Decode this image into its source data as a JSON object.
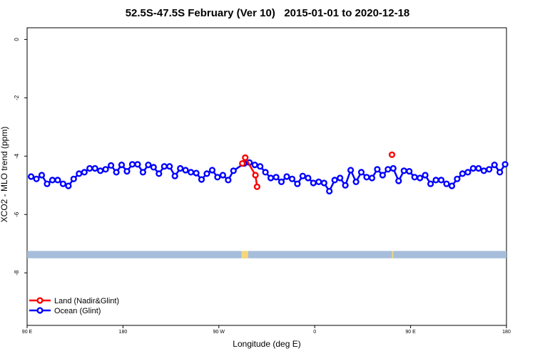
{
  "chart_data": {
    "type": "line",
    "title": "52.5S-47.5S February (Ver 10)   2015-01-01 to 2020-12-18",
    "xlabel": "Longitude (deg E)",
    "ylabel": "XCO2 - MLO trend (ppm)",
    "xlim": [
      90,
      450
    ],
    "ylim": [
      -9.8,
      0.4
    ],
    "x_ticks": [
      {
        "value": 90,
        "label": "90 E"
      },
      {
        "value": 162,
        "label": "180"
      },
      {
        "value": 234,
        "label": "90 W"
      },
      {
        "value": 306,
        "label": "0"
      },
      {
        "value": 378,
        "label": "90 E"
      },
      {
        "value": 450,
        "label": "180"
      }
    ],
    "y_ticks": [
      {
        "value": 0,
        "label": "0"
      },
      {
        "value": -2,
        "label": "-2"
      },
      {
        "value": -4,
        "label": "-4"
      },
      {
        "value": -6,
        "label": "-6"
      },
      {
        "value": -8,
        "label": "-8"
      }
    ],
    "legend_position": "bottom-left",
    "series": [
      {
        "name": "Land (Nadir&Glint)",
        "color": "#ff0000",
        "points": [
          {
            "x": 251.6,
            "y": -4.25
          },
          {
            "x": 253.8,
            "y": -4.05
          },
          {
            "x": 261.5,
            "y": -4.65
          },
          {
            "x": 262.7,
            "y": -5.05
          },
          {
            "x": 364.0,
            "y": -3.95,
            "isolated": true
          }
        ]
      },
      {
        "name": "Ocean (Glint)",
        "color": "#0000ff",
        "points": [
          {
            "x": 93,
            "y": -4.7
          },
          {
            "x": 97,
            "y": -4.78
          },
          {
            "x": 101,
            "y": -4.65
          },
          {
            "x": 105,
            "y": -4.95
          },
          {
            "x": 109,
            "y": -4.82
          },
          {
            "x": 113,
            "y": -4.82
          },
          {
            "x": 117,
            "y": -4.95
          },
          {
            "x": 121,
            "y": -5.02
          },
          {
            "x": 125,
            "y": -4.78
          },
          {
            "x": 129,
            "y": -4.6
          },
          {
            "x": 133,
            "y": -4.55
          },
          {
            "x": 137,
            "y": -4.42
          },
          {
            "x": 141,
            "y": -4.42
          },
          {
            "x": 145,
            "y": -4.5
          },
          {
            "x": 149,
            "y": -4.45
          },
          {
            "x": 153,
            "y": -4.32
          },
          {
            "x": 157,
            "y": -4.55
          },
          {
            "x": 161,
            "y": -4.3
          },
          {
            "x": 165,
            "y": -4.52
          },
          {
            "x": 169,
            "y": -4.28
          },
          {
            "x": 173,
            "y": -4.28
          },
          {
            "x": 177,
            "y": -4.55
          },
          {
            "x": 181,
            "y": -4.3
          },
          {
            "x": 185,
            "y": -4.38
          },
          {
            "x": 189,
            "y": -4.6
          },
          {
            "x": 193,
            "y": -4.35
          },
          {
            "x": 197,
            "y": -4.35
          },
          {
            "x": 201,
            "y": -4.68
          },
          {
            "x": 205,
            "y": -4.42
          },
          {
            "x": 209,
            "y": -4.48
          },
          {
            "x": 213,
            "y": -4.55
          },
          {
            "x": 217,
            "y": -4.58
          },
          {
            "x": 221,
            "y": -4.8
          },
          {
            "x": 225,
            "y": -4.6
          },
          {
            "x": 229,
            "y": -4.48
          },
          {
            "x": 233,
            "y": -4.72
          },
          {
            "x": 237,
            "y": -4.65
          },
          {
            "x": 241,
            "y": -4.82
          },
          {
            "x": 245,
            "y": -4.5
          },
          {
            "x": 253,
            "y": -4.25
          },
          {
            "x": 257,
            "y": -4.22
          },
          {
            "x": 261,
            "y": -4.3
          },
          {
            "x": 265,
            "y": -4.35
          },
          {
            "x": 269,
            "y": -4.55
          },
          {
            "x": 273,
            "y": -4.75
          },
          {
            "x": 277,
            "y": -4.72
          },
          {
            "x": 281,
            "y": -4.88
          },
          {
            "x": 285,
            "y": -4.7
          },
          {
            "x": 289,
            "y": -4.78
          },
          {
            "x": 293,
            "y": -4.95
          },
          {
            "x": 297,
            "y": -4.68
          },
          {
            "x": 301,
            "y": -4.75
          },
          {
            "x": 305,
            "y": -4.92
          },
          {
            "x": 309,
            "y": -4.88
          },
          {
            "x": 313,
            "y": -4.92
          },
          {
            "x": 317,
            "y": -5.2
          },
          {
            "x": 321,
            "y": -4.82
          },
          {
            "x": 325,
            "y": -4.75
          },
          {
            "x": 329,
            "y": -5.0
          },
          {
            "x": 333,
            "y": -4.48
          },
          {
            "x": 337,
            "y": -4.88
          },
          {
            "x": 341,
            "y": -4.55
          },
          {
            "x": 345,
            "y": -4.72
          },
          {
            "x": 349,
            "y": -4.75
          },
          {
            "x": 353,
            "y": -4.45
          },
          {
            "x": 357,
            "y": -4.65
          },
          {
            "x": 361,
            "y": -4.45
          },
          {
            "x": 365,
            "y": -4.42
          },
          {
            "x": 369,
            "y": -4.85
          },
          {
            "x": 373,
            "y": -4.5
          },
          {
            "x": 377,
            "y": -4.52
          },
          {
            "x": 381,
            "y": -4.72
          },
          {
            "x": 385,
            "y": -4.75
          },
          {
            "x": 389,
            "y": -4.65
          },
          {
            "x": 393,
            "y": -4.95
          },
          {
            "x": 397,
            "y": -4.82
          },
          {
            "x": 401,
            "y": -4.82
          },
          {
            "x": 405,
            "y": -4.95
          },
          {
            "x": 409,
            "y": -5.02
          },
          {
            "x": 413,
            "y": -4.78
          },
          {
            "x": 417,
            "y": -4.6
          },
          {
            "x": 421,
            "y": -4.55
          },
          {
            "x": 425,
            "y": -4.42
          },
          {
            "x": 429,
            "y": -4.42
          },
          {
            "x": 433,
            "y": -4.5
          },
          {
            "x": 437,
            "y": -4.45
          },
          {
            "x": 441,
            "y": -4.3
          },
          {
            "x": 445,
            "y": -4.55
          },
          {
            "x": 449,
            "y": -4.28
          }
        ]
      }
    ],
    "land_mask_strip": {
      "y_range": [
        -7.5,
        -7.25
      ],
      "ocean_color": "#a6bddb",
      "land_color": "#f5d77a",
      "land_spans": [
        [
          251.0,
          256.0
        ],
        [
          364.0,
          365.0
        ]
      ]
    }
  }
}
